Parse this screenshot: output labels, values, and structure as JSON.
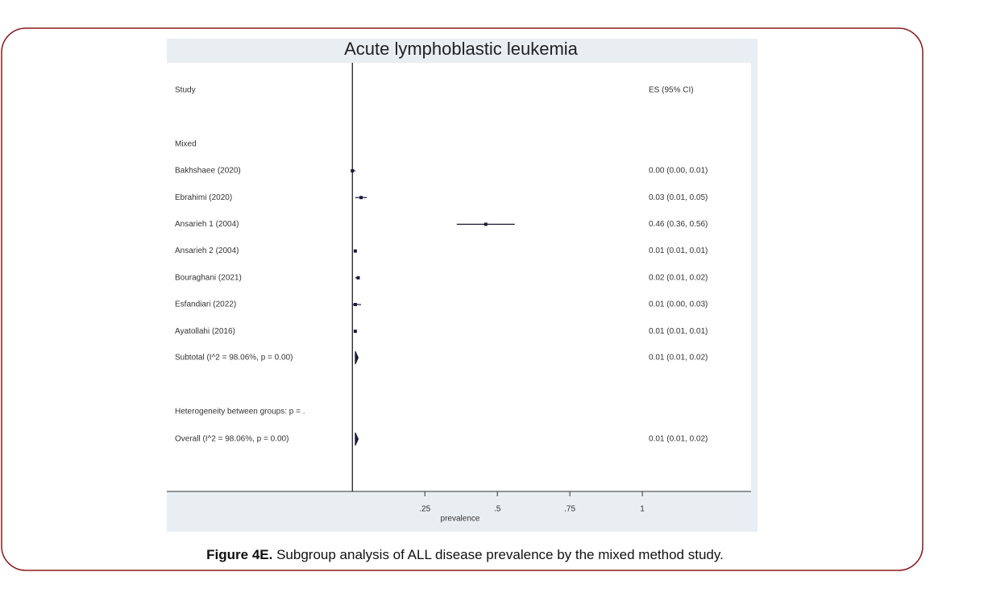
{
  "chart_data": {
    "type": "forest",
    "title": "Acute lymphoblastic leukemia",
    "study_header": "Study",
    "es_header": "ES (95% CI)",
    "group_label": "Mixed",
    "categories": [
      "Bakhshaee (2020)",
      "Ebrahimi (2020)",
      "Ansarieh 1 (2004)",
      "Ansarieh 2 (2004)",
      "Bouraghani (2021)",
      "Esfandiari (2022)",
      "Ayatollahi (2016)"
    ],
    "values": [
      0.0,
      0.03,
      0.46,
      0.01,
      0.02,
      0.01,
      0.01
    ],
    "lower": [
      0.0,
      0.01,
      0.36,
      0.01,
      0.01,
      0.0,
      0.01
    ],
    "upper": [
      0.01,
      0.05,
      0.56,
      0.01,
      0.02,
      0.03,
      0.01
    ],
    "value_labels": [
      "0.00 (0.00, 0.01)",
      "0.03 (0.01, 0.05)",
      "0.46 (0.36, 0.56)",
      "0.01 (0.01, 0.01)",
      "0.02 (0.01, 0.02)",
      "0.01 (0.00, 0.03)",
      "0.01 (0.01, 0.01)"
    ],
    "subtotal": {
      "label": "Subtotal (I^2 = 98.06%, p = 0.00)",
      "value": 0.01,
      "lower": 0.01,
      "upper": 0.02,
      "value_label": "0.01 (0.01, 0.02)"
    },
    "heterogeneity_label": "Heterogeneity between groups: p = .",
    "overall": {
      "label": "Overall (I^2 = 98.06%, p = 0.00)",
      "value": 0.01,
      "lower": 0.01,
      "upper": 0.02,
      "value_label": "0.01 (0.01, 0.02)"
    },
    "xlabel": "prevalence",
    "xlim": [
      -0.64,
      1.375
    ],
    "xticks": [
      {
        "value": 0.25,
        "label": ".25"
      },
      {
        "value": 0.5,
        "label": ".5"
      },
      {
        "value": 0.75,
        "label": ".75"
      },
      1
    ],
    "color": "#1a1a3a"
  },
  "caption": {
    "label": "Figure 4E.",
    "text": "Subgroup analysis of ALL disease prevalence by the mixed method study."
  }
}
